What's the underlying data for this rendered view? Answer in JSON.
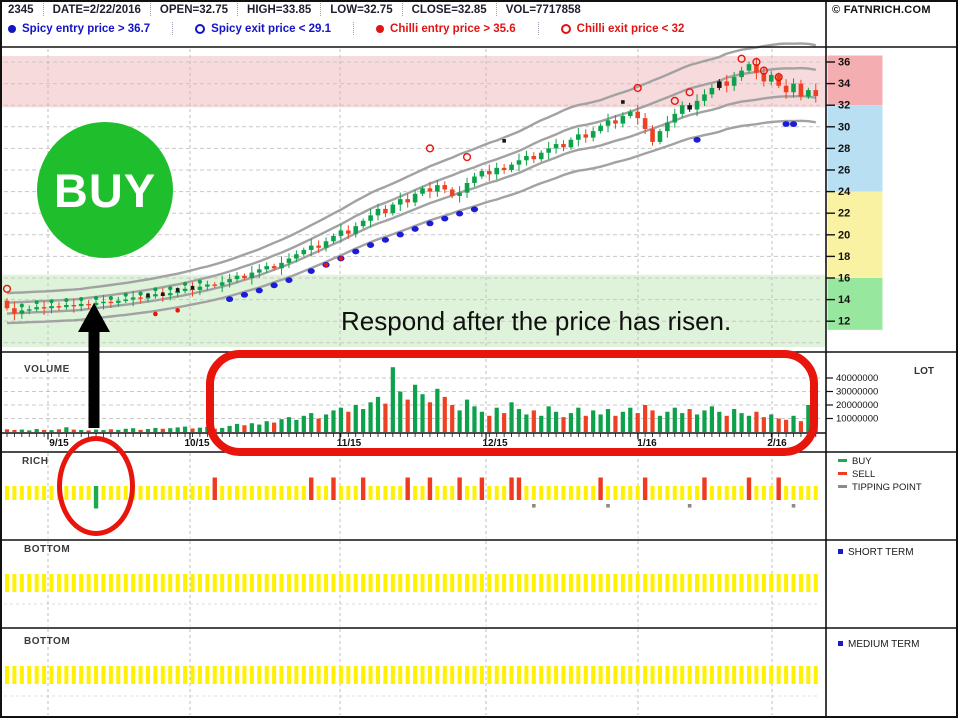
{
  "header": {
    "fields": [
      "2345",
      "DATE=2/22/2016",
      "OPEN=32.75",
      "HIGH=33.85",
      "LOW=32.75",
      "CLOSE=32.85",
      "VOL=7717858"
    ],
    "copyright": "© FATNRICH.COM",
    "signals": [
      {
        "label": "Spicy entry price > 36.7",
        "color": "#1313C8",
        "marker": "filled"
      },
      {
        "label": "Spicy exit price < 29.1",
        "color": "#1313C8",
        "marker": "open"
      },
      {
        "label": "Chilli entry price > 35.6",
        "color": "#E11414",
        "marker": "filled"
      },
      {
        "label": "Chilli exit price < 32",
        "color": "#E11414",
        "marker": "open"
      }
    ]
  },
  "annotations": {
    "buy_badge": "BUY",
    "callout": "Respond after the price has risen."
  },
  "panels": {
    "volume": {
      "label": "VOLUME",
      "unit": "LOT"
    },
    "rich": {
      "label": "RICH",
      "legend": [
        {
          "label": "BUY",
          "color": "#1FA84C"
        },
        {
          "label": "SELL",
          "color": "#F03A1F"
        },
        {
          "label": "TIPPING POINT",
          "color": "#8A8A8A"
        }
      ]
    },
    "bottom1": {
      "label": "BOTTOM",
      "legend": {
        "label": "SHORT TERM",
        "color": "#1A1ACC"
      }
    },
    "bottom2": {
      "label": "BOTTOM",
      "legend": {
        "label": "MEDIUM TERM",
        "color": "#1A1ACC"
      }
    }
  },
  "chart_data": {
    "type": "candlestick",
    "title": "2345 daily price with volume and signal panels",
    "x_tick_labels": [
      "9/15",
      "10/15",
      "11/15",
      "12/15",
      "1/16",
      "2/16"
    ],
    "price_ticks": [
      36,
      34,
      32,
      30,
      28,
      26,
      24,
      22,
      20,
      18,
      16,
      14,
      12
    ],
    "volume_tick_labels": [
      "40000000",
      "30000000",
      "20000000",
      "10000000"
    ],
    "volume_tick_values_millions": [
      40,
      30,
      20,
      10
    ],
    "open_first": 13.9,
    "closes": [
      13.2,
      12.7,
      13.0,
      13.1,
      13.3,
      13.2,
      13.4,
      13.3,
      13.5,
      13.4,
      13.6,
      13.5,
      13.7,
      13.8,
      13.7,
      13.9,
      14.0,
      14.2,
      14.1,
      14.3,
      14.5,
      14.4,
      14.6,
      14.8,
      15.0,
      14.9,
      15.2,
      15.4,
      15.3,
      15.6,
      15.9,
      16.2,
      16.0,
      16.5,
      16.8,
      17.1,
      16.9,
      17.4,
      17.8,
      18.2,
      18.6,
      19.0,
      18.8,
      19.4,
      19.9,
      20.4,
      20.1,
      20.8,
      21.3,
      21.8,
      22.4,
      22.0,
      22.8,
      23.3,
      23.0,
      23.8,
      24.3,
      24.0,
      24.6,
      24.2,
      23.6,
      23.9,
      24.8,
      25.4,
      25.9,
      25.6,
      26.2,
      26.0,
      26.5,
      26.9,
      27.3,
      27.0,
      27.6,
      28.0,
      28.4,
      28.1,
      28.8,
      29.3,
      29.0,
      29.6,
      30.1,
      30.6,
      30.3,
      31.0,
      31.4,
      30.8,
      29.8,
      28.6,
      29.6,
      30.4,
      31.2,
      32.0,
      31.6,
      32.4,
      33.0,
      33.6,
      34.2,
      33.8,
      34.6,
      35.2,
      35.8,
      35.0,
      34.2,
      34.8,
      33.8,
      33.2,
      34.0,
      32.8,
      33.4,
      32.85
    ],
    "volumes_millions": [
      2,
      1.5,
      1.8,
      1.2,
      2.2,
      1.6,
      1.4,
      2,
      3.5,
      1.8,
      1.5,
      1.2,
      1.8,
      1.4,
      2,
      1.6,
      2.4,
      2.8,
      1.6,
      2.2,
      3,
      2.4,
      2.8,
      3.4,
      4,
      2.6,
      3.2,
      3.8,
      2.4,
      3,
      4.5,
      6,
      5,
      6.5,
      5.5,
      8,
      7,
      9.5,
      11,
      9,
      12,
      14,
      10,
      13,
      16,
      18,
      15,
      20,
      17,
      22,
      26,
      21,
      48,
      30,
      24,
      35,
      28,
      22,
      32,
      26,
      20,
      16,
      24,
      19,
      15,
      12,
      18,
      14,
      22,
      17,
      13,
      16,
      12,
      19,
      15,
      11,
      14,
      18,
      12,
      16,
      13,
      17,
      12,
      15,
      18,
      14,
      20,
      16,
      12,
      15,
      18,
      14,
      17,
      13,
      16,
      19,
      15,
      12,
      17,
      14,
      12,
      15,
      11,
      13,
      10,
      9,
      12,
      8,
      20,
      10
    ],
    "black_candles": [
      92,
      96
    ],
    "channel_multipliers": [
      0.895,
      0.962,
      1.038,
      1.105
    ],
    "valuation_bands": {
      "pink_price_range": [
        32,
        36.5
      ],
      "blue_price_range": [
        24,
        32
      ],
      "yellow_price_range": [
        16,
        24
      ],
      "green_price_range": [
        11.2,
        16
      ]
    },
    "signals": {
      "buy_bar_index": 12,
      "sell_bar_indices": [
        28,
        41,
        44,
        48,
        54,
        57,
        61,
        64,
        68,
        69,
        80,
        86,
        94,
        100,
        104
      ],
      "tipping_point_indices": [
        71,
        81,
        92,
        106
      ],
      "blue_dot_indices": [
        30,
        32,
        34,
        36,
        38,
        41,
        43,
        45,
        47,
        49,
        51,
        53,
        55,
        57,
        59,
        61,
        63,
        93,
        105,
        106
      ],
      "red_dot_indices": [
        20,
        23,
        43,
        45
      ],
      "green_dot_indices": [
        2,
        4,
        6,
        8,
        10,
        12,
        14,
        16,
        18,
        20,
        22,
        24,
        26
      ],
      "black_dot_points": [
        [
          19,
          14.4
        ],
        [
          21,
          14.5
        ],
        [
          23,
          14.9
        ],
        [
          25,
          15.1
        ],
        [
          67,
          28.7
        ],
        [
          83,
          32.3
        ]
      ],
      "red_ring_points": [
        [
          0,
          15.0
        ],
        [
          57,
          28.0
        ],
        [
          62,
          27.2
        ],
        [
          85,
          33.6
        ],
        [
          90,
          32.4
        ],
        [
          92,
          33.2
        ],
        [
          99,
          36.3
        ],
        [
          101,
          36.0
        ],
        [
          102,
          35.2
        ],
        [
          104,
          34.6
        ]
      ]
    }
  },
  "colors": {
    "buy_badge_bg": "#1FBE2D",
    "annotation_red": "#E8150D",
    "candle_up": "#0CA14A",
    "candle_down": "#EE4123",
    "candle_black": "#141414",
    "spicy_blue": "#1C1CD8",
    "chilli_red": "#E8150D",
    "band_pink": "#F7DADB",
    "band_green": "#DFF2DA",
    "strip_pink": "#F4AEB2",
    "strip_blue": "#B8DFF2",
    "strip_yellow": "#F8F2A2",
    "strip_green": "#98E79E",
    "signal_yellow": "#FFF100",
    "channel_gray": "#A2A2A2",
    "grid_gray": "#C8C8C8",
    "frame_black": "#111111"
  }
}
